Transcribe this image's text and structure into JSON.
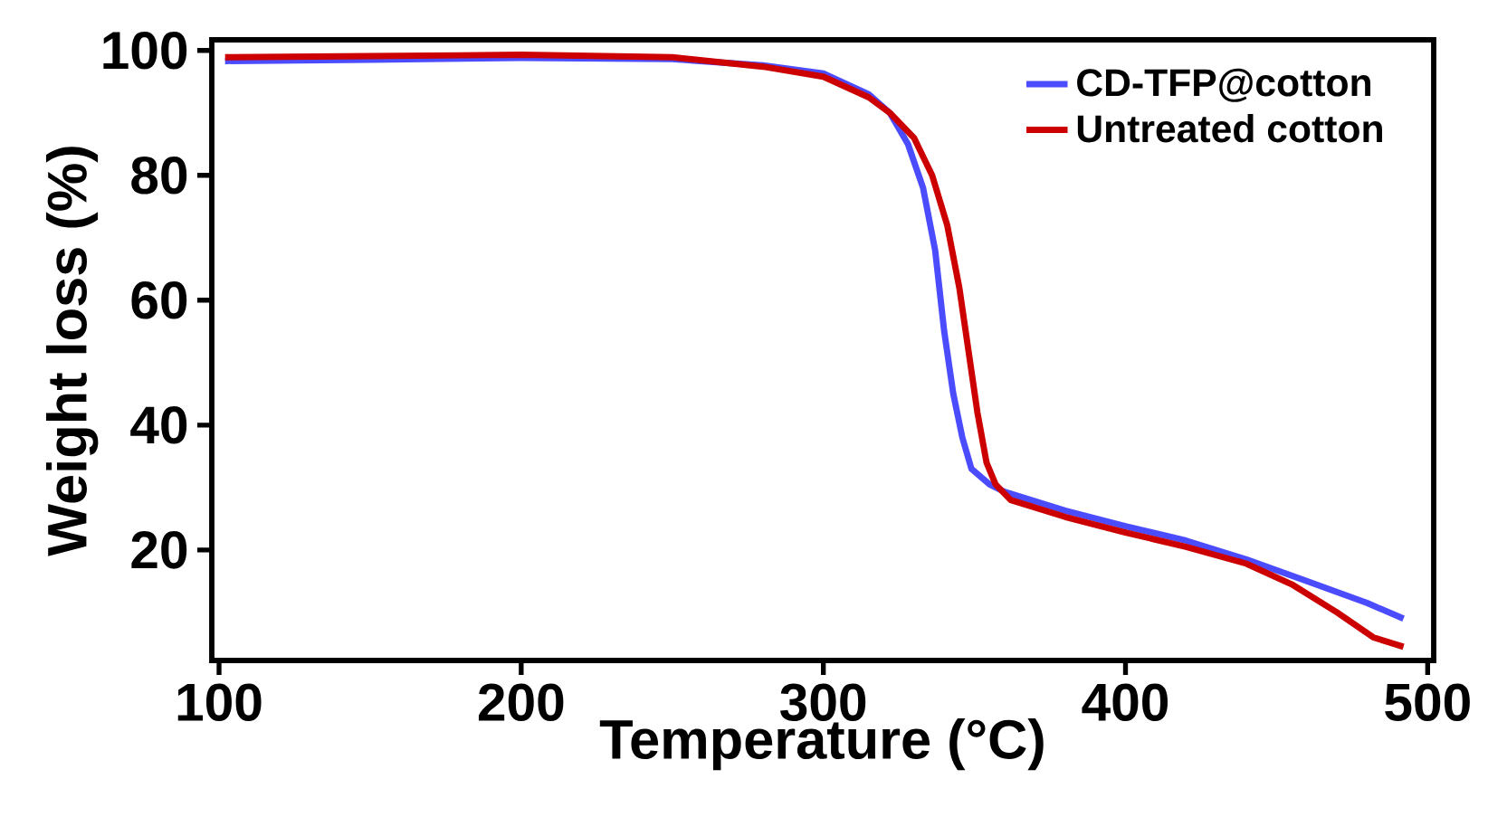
{
  "chart_data": {
    "type": "line",
    "xlabel": "Temperature (°C)",
    "ylabel": "Weight loss (%)",
    "xlim": [
      97.6,
      502
    ],
    "ylim": [
      2.3,
      101.7
    ],
    "xticks": [
      100,
      200,
      300,
      400,
      500
    ],
    "yticks": [
      20,
      40,
      60,
      80,
      100
    ],
    "legend": "top right",
    "grid": false,
    "series": [
      {
        "name": "CD-TFP@cotton",
        "color": "#4c4cff",
        "x": [
          102,
          150,
          200,
          250,
          280,
          300,
          315,
          322,
          328,
          333,
          337,
          340,
          343,
          346,
          349,
          355,
          360,
          380,
          400,
          420,
          440,
          460,
          480,
          492
        ],
        "values": [
          98.3,
          98.5,
          98.8,
          98.6,
          97.6,
          96.3,
          93,
          90,
          85,
          78,
          68,
          55,
          45,
          38,
          33,
          30.5,
          29.3,
          26.3,
          23.8,
          21.5,
          18.5,
          15,
          11.5,
          9
        ]
      },
      {
        "name": "Untreated cotton",
        "color": "#cc0000",
        "x": [
          102,
          150,
          200,
          250,
          280,
          300,
          315,
          322,
          330,
          336,
          341,
          345,
          348,
          351,
          354,
          357,
          362,
          380,
          400,
          420,
          440,
          455,
          470,
          482,
          492
        ],
        "values": [
          98.9,
          99.1,
          99.3,
          98.9,
          97.4,
          95.8,
          92.5,
          90,
          86,
          80,
          72,
          62,
          52,
          42,
          34,
          30.5,
          28,
          25.3,
          22.8,
          20.5,
          17.8,
          14.5,
          10,
          6,
          4.5
        ]
      }
    ]
  }
}
